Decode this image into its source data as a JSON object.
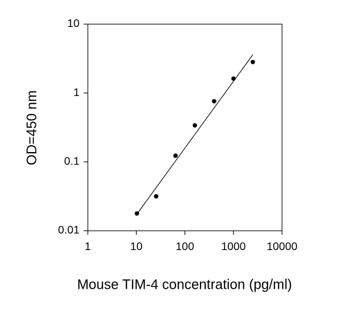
{
  "chart_data": {
    "type": "scatter",
    "x_label": "Mouse TIM-4 concentration (pg/ml)",
    "y_label": "OD=450 nm",
    "x": [
      10.24,
      25.6,
      64,
      160,
      400,
      1000,
      2500
    ],
    "values": [
      0.0178,
      0.0316,
      0.123,
      0.339,
      0.76,
      1.62,
      2.82
    ],
    "color": "#000000",
    "fit_line": {
      "x": [
        10,
        2500
      ],
      "values": [
        0.017,
        3.6
      ],
      "color": "#000000"
    },
    "xlim": [
      1,
      10000
    ],
    "ylim": [
      0.01,
      10
    ],
    "xticks": [
      1,
      10,
      100,
      1000,
      10000
    ],
    "yticks": [
      0.01,
      0.1,
      1,
      10
    ],
    "x_log": true,
    "y_log": true,
    "grid": false
  }
}
